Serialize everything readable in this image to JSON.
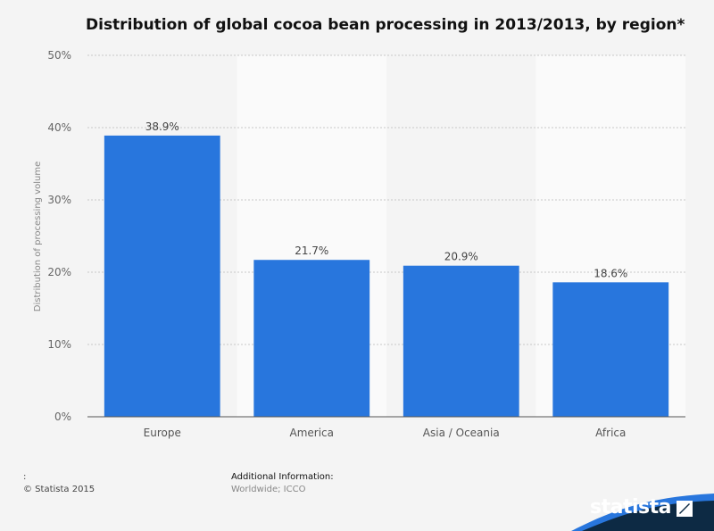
{
  "chart_data": {
    "type": "bar",
    "title": "Distribution of global cocoa bean processing in 2013/2013, by region*",
    "categories": [
      "Europe",
      "America",
      "Asia / Oceania",
      "Africa"
    ],
    "values": [
      38.9,
      21.7,
      20.9,
      18.6
    ],
    "value_labels": [
      "38.9%",
      "21.7%",
      "20.9%",
      "18.6%"
    ],
    "ylabel": "Distribution of processing volume",
    "ylim": [
      0,
      50
    ],
    "yticks": [
      0,
      10,
      20,
      30,
      40,
      50
    ],
    "ytick_labels": [
      "0%",
      "10%",
      "20%",
      "30%",
      "40%",
      "50%"
    ],
    "grid": true,
    "bar_color": "#2876dd"
  },
  "footer": {
    "colon": ":",
    "copyright": "© Statista 2015",
    "additional_label": "Additional Information:",
    "additional_value": "Worldwide; ICCO"
  },
  "brand": {
    "name": "statista",
    "accent": "#2876dd",
    "dark": "#0d2a44"
  }
}
